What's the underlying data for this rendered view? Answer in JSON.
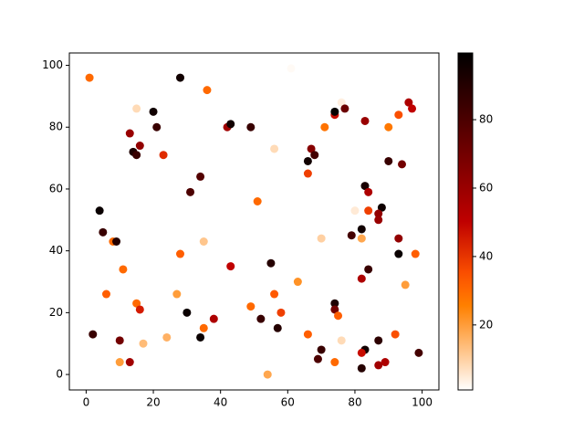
{
  "chart_data": {
    "type": "scatter",
    "colormap": "gist_heat_r",
    "x": [
      1,
      28,
      36,
      61,
      15,
      20,
      13,
      21,
      16,
      14,
      15,
      23,
      42,
      43,
      49,
      56,
      34,
      31,
      4,
      5,
      8,
      9,
      11,
      6,
      15,
      16,
      27,
      28,
      35,
      43,
      51,
      55,
      56,
      58,
      49,
      52,
      57,
      63,
      38,
      30,
      34,
      35,
      2,
      10,
      10,
      13,
      17,
      24,
      54,
      66,
      67,
      68,
      66,
      71,
      74,
      74,
      76,
      77,
      83,
      90,
      93,
      96,
      97,
      90,
      94,
      83,
      84,
      88,
      84,
      80,
      87,
      87,
      82,
      79,
      82,
      70,
      93,
      93,
      98,
      84,
      82,
      95,
      74,
      74,
      75,
      66,
      76,
      70,
      69,
      74,
      83,
      82,
      87,
      92,
      82,
      87,
      89,
      99
    ],
    "y": [
      96,
      96,
      92,
      99,
      86,
      85,
      78,
      80,
      74,
      72,
      71,
      71,
      80,
      81,
      80,
      73,
      64,
      59,
      53,
      46,
      43,
      43,
      34,
      26,
      23,
      21,
      26,
      39,
      43,
      35,
      56,
      36,
      26,
      20,
      22,
      18,
      15,
      30,
      18,
      20,
      12,
      15,
      13,
      11,
      4,
      4,
      10,
      12,
      0,
      69,
      73,
      71,
      65,
      80,
      84,
      85,
      88,
      86,
      82,
      80,
      84,
      88,
      86,
      69,
      68,
      61,
      59,
      54,
      53,
      53,
      52,
      50,
      47,
      45,
      44,
      44,
      44,
      39,
      39,
      34,
      31,
      29,
      23,
      21,
      19,
      13,
      11,
      8,
      5,
      4,
      8,
      7,
      11,
      13,
      2,
      3,
      4,
      7
    ],
    "c": [
      30,
      95,
      30,
      2,
      8,
      95,
      60,
      85,
      62,
      92,
      85,
      42,
      58,
      95,
      85,
      8,
      78,
      80,
      97,
      85,
      30,
      90,
      30,
      32,
      30,
      45,
      20,
      32,
      12,
      50,
      30,
      90,
      33,
      38,
      30,
      85,
      90,
      22,
      55,
      97,
      97,
      30,
      85,
      70,
      20,
      58,
      14,
      16,
      18,
      95,
      65,
      82,
      38,
      28,
      48,
      98,
      4,
      72,
      60,
      27,
      35,
      55,
      50,
      85,
      70,
      93,
      55,
      96,
      38,
      5,
      62,
      60,
      95,
      82,
      18,
      10,
      62,
      97,
      32,
      85,
      55,
      20,
      92,
      70,
      32,
      32,
      8,
      85,
      80,
      30,
      95,
      48,
      88,
      35,
      90,
      58,
      55,
      82
    ],
    "xlim": [
      -5,
      105
    ],
    "ylim": [
      -5,
      104
    ],
    "xticks": [
      0,
      20,
      40,
      60,
      80,
      100
    ],
    "yticks": [
      0,
      20,
      40,
      60,
      80,
      100
    ],
    "clim": [
      1,
      99.5
    ],
    "cticks": [
      20,
      40,
      60,
      80
    ]
  }
}
